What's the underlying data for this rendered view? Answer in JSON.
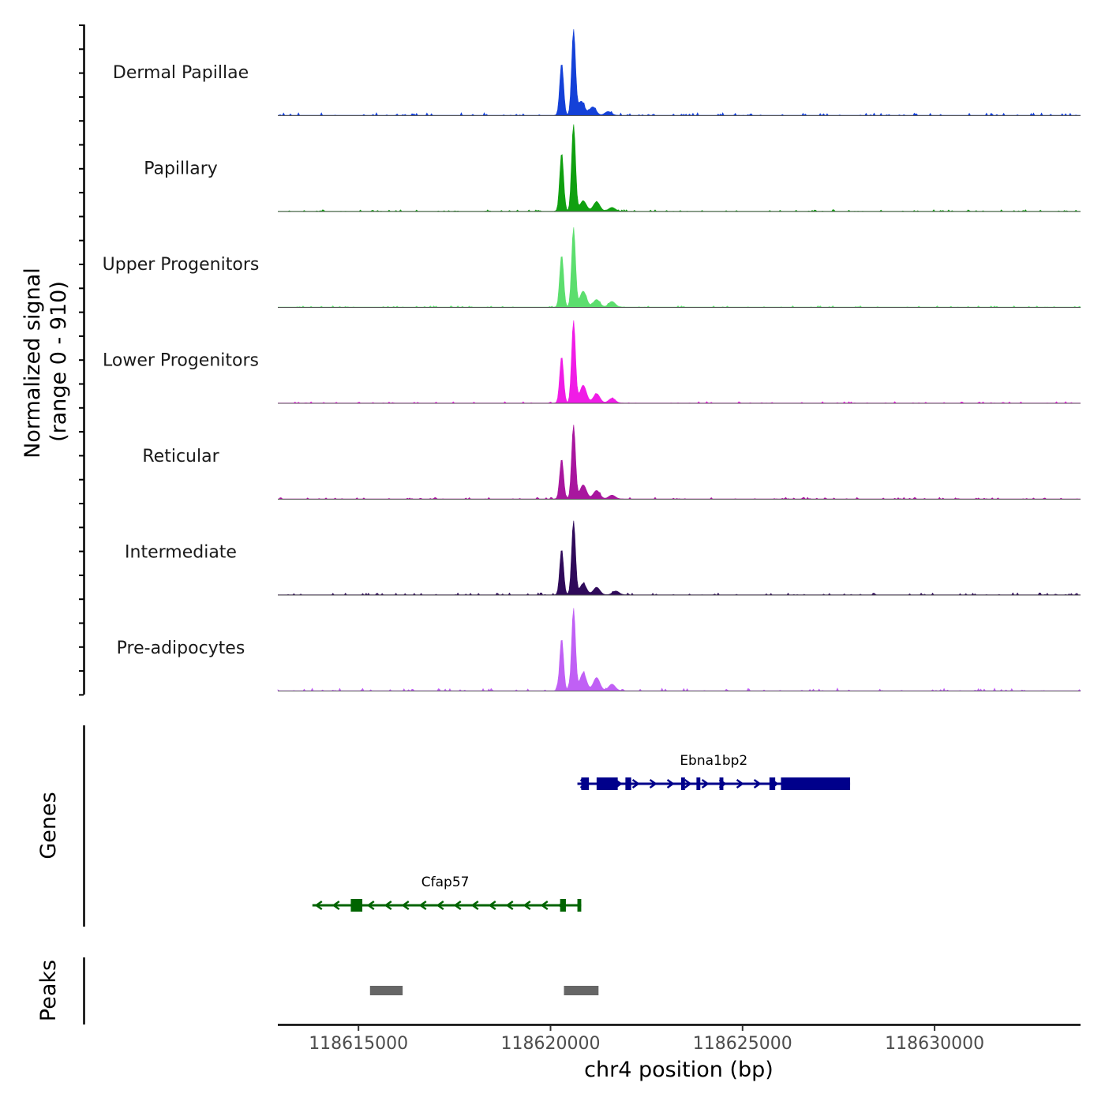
{
  "chart_data": {
    "type": "area",
    "title": "",
    "xlabel": "chr4 position (bp)",
    "ylabel": [
      "Normalized signal",
      "(range 0 - 910)"
    ],
    "signal_range": [
      0,
      910
    ],
    "xlim": [
      118612900,
      118633800
    ],
    "x_ticks": [
      {
        "value": 118615000,
        "label": "118615000"
      },
      {
        "value": 118620000,
        "label": "118620000"
      },
      {
        "value": 118625000,
        "label": "118625000"
      },
      {
        "value": 118630000,
        "label": "118630000"
      }
    ],
    "tracks": [
      {
        "name": "Dermal Papillae",
        "color": "#1441D8",
        "peaks": [
          [
            118620290,
            560
          ],
          [
            118620600,
            910
          ],
          [
            118620800,
            150
          ],
          [
            118621100,
            90
          ],
          [
            118621500,
            40
          ]
        ],
        "noise": 0.03
      },
      {
        "name": "Papillary",
        "color": "#10A010",
        "peaks": [
          [
            118620290,
            620
          ],
          [
            118620600,
            940
          ],
          [
            118620850,
            110
          ],
          [
            118621200,
            100
          ],
          [
            118621600,
            40
          ]
        ],
        "noise": 0.018
      },
      {
        "name": "Upper Progenitors",
        "color": "#5CDE6E",
        "peaks": [
          [
            118620290,
            560
          ],
          [
            118620600,
            850
          ],
          [
            118620850,
            170
          ],
          [
            118621200,
            80
          ],
          [
            118621600,
            60
          ]
        ],
        "noise": 0.014
      },
      {
        "name": "Lower Progenitors",
        "color": "#F01CE6",
        "peaks": [
          [
            118620290,
            500
          ],
          [
            118620600,
            880
          ],
          [
            118620850,
            190
          ],
          [
            118621200,
            100
          ],
          [
            118621600,
            50
          ]
        ],
        "noise": 0.016
      },
      {
        "name": "Reticular",
        "color": "#A8169E",
        "peaks": [
          [
            118620290,
            430
          ],
          [
            118620600,
            790
          ],
          [
            118620850,
            150
          ],
          [
            118621200,
            90
          ],
          [
            118621600,
            40
          ]
        ],
        "noise": 0.018
      },
      {
        "name": "Intermediate",
        "color": "#2F0A5A",
        "peaks": [
          [
            118620290,
            490
          ],
          [
            118620600,
            790
          ],
          [
            118620850,
            120
          ],
          [
            118621200,
            80
          ],
          [
            118621700,
            40
          ]
        ],
        "noise": 0.022
      },
      {
        "name": "Pre-adipocytes",
        "color": "#C060F5",
        "peaks": [
          [
            118620290,
            560
          ],
          [
            118620600,
            880
          ],
          [
            118620850,
            190
          ],
          [
            118621200,
            140
          ],
          [
            118621600,
            70
          ]
        ],
        "noise": 0.03
      }
    ],
    "genes_track_label": "Genes",
    "peaks_track_label": "Peaks",
    "genes": [
      {
        "name": "Cfap57",
        "color": "#006400",
        "strand": "-",
        "start": 118613800,
        "end": 118620800,
        "exons": [
          [
            118614800,
            118615100
          ],
          [
            118620250,
            118620400
          ],
          [
            118620700,
            118620800
          ]
        ]
      },
      {
        "name": "Ebna1bp2",
        "color": "#00008B",
        "strand": "+",
        "start": 118620700,
        "end": 118627800,
        "exons": [
          [
            118620800,
            118621000
          ],
          [
            118621200,
            118621750
          ],
          [
            118621950,
            118622100
          ],
          [
            118623400,
            118623500
          ],
          [
            118623800,
            118623900
          ],
          [
            118624400,
            118624500
          ],
          [
            118625700,
            118625850
          ],
          [
            118626000,
            118627800
          ]
        ]
      }
    ],
    "peak_regions": [
      [
        118615300,
        118616150
      ],
      [
        118620350,
        118621250
      ]
    ]
  }
}
